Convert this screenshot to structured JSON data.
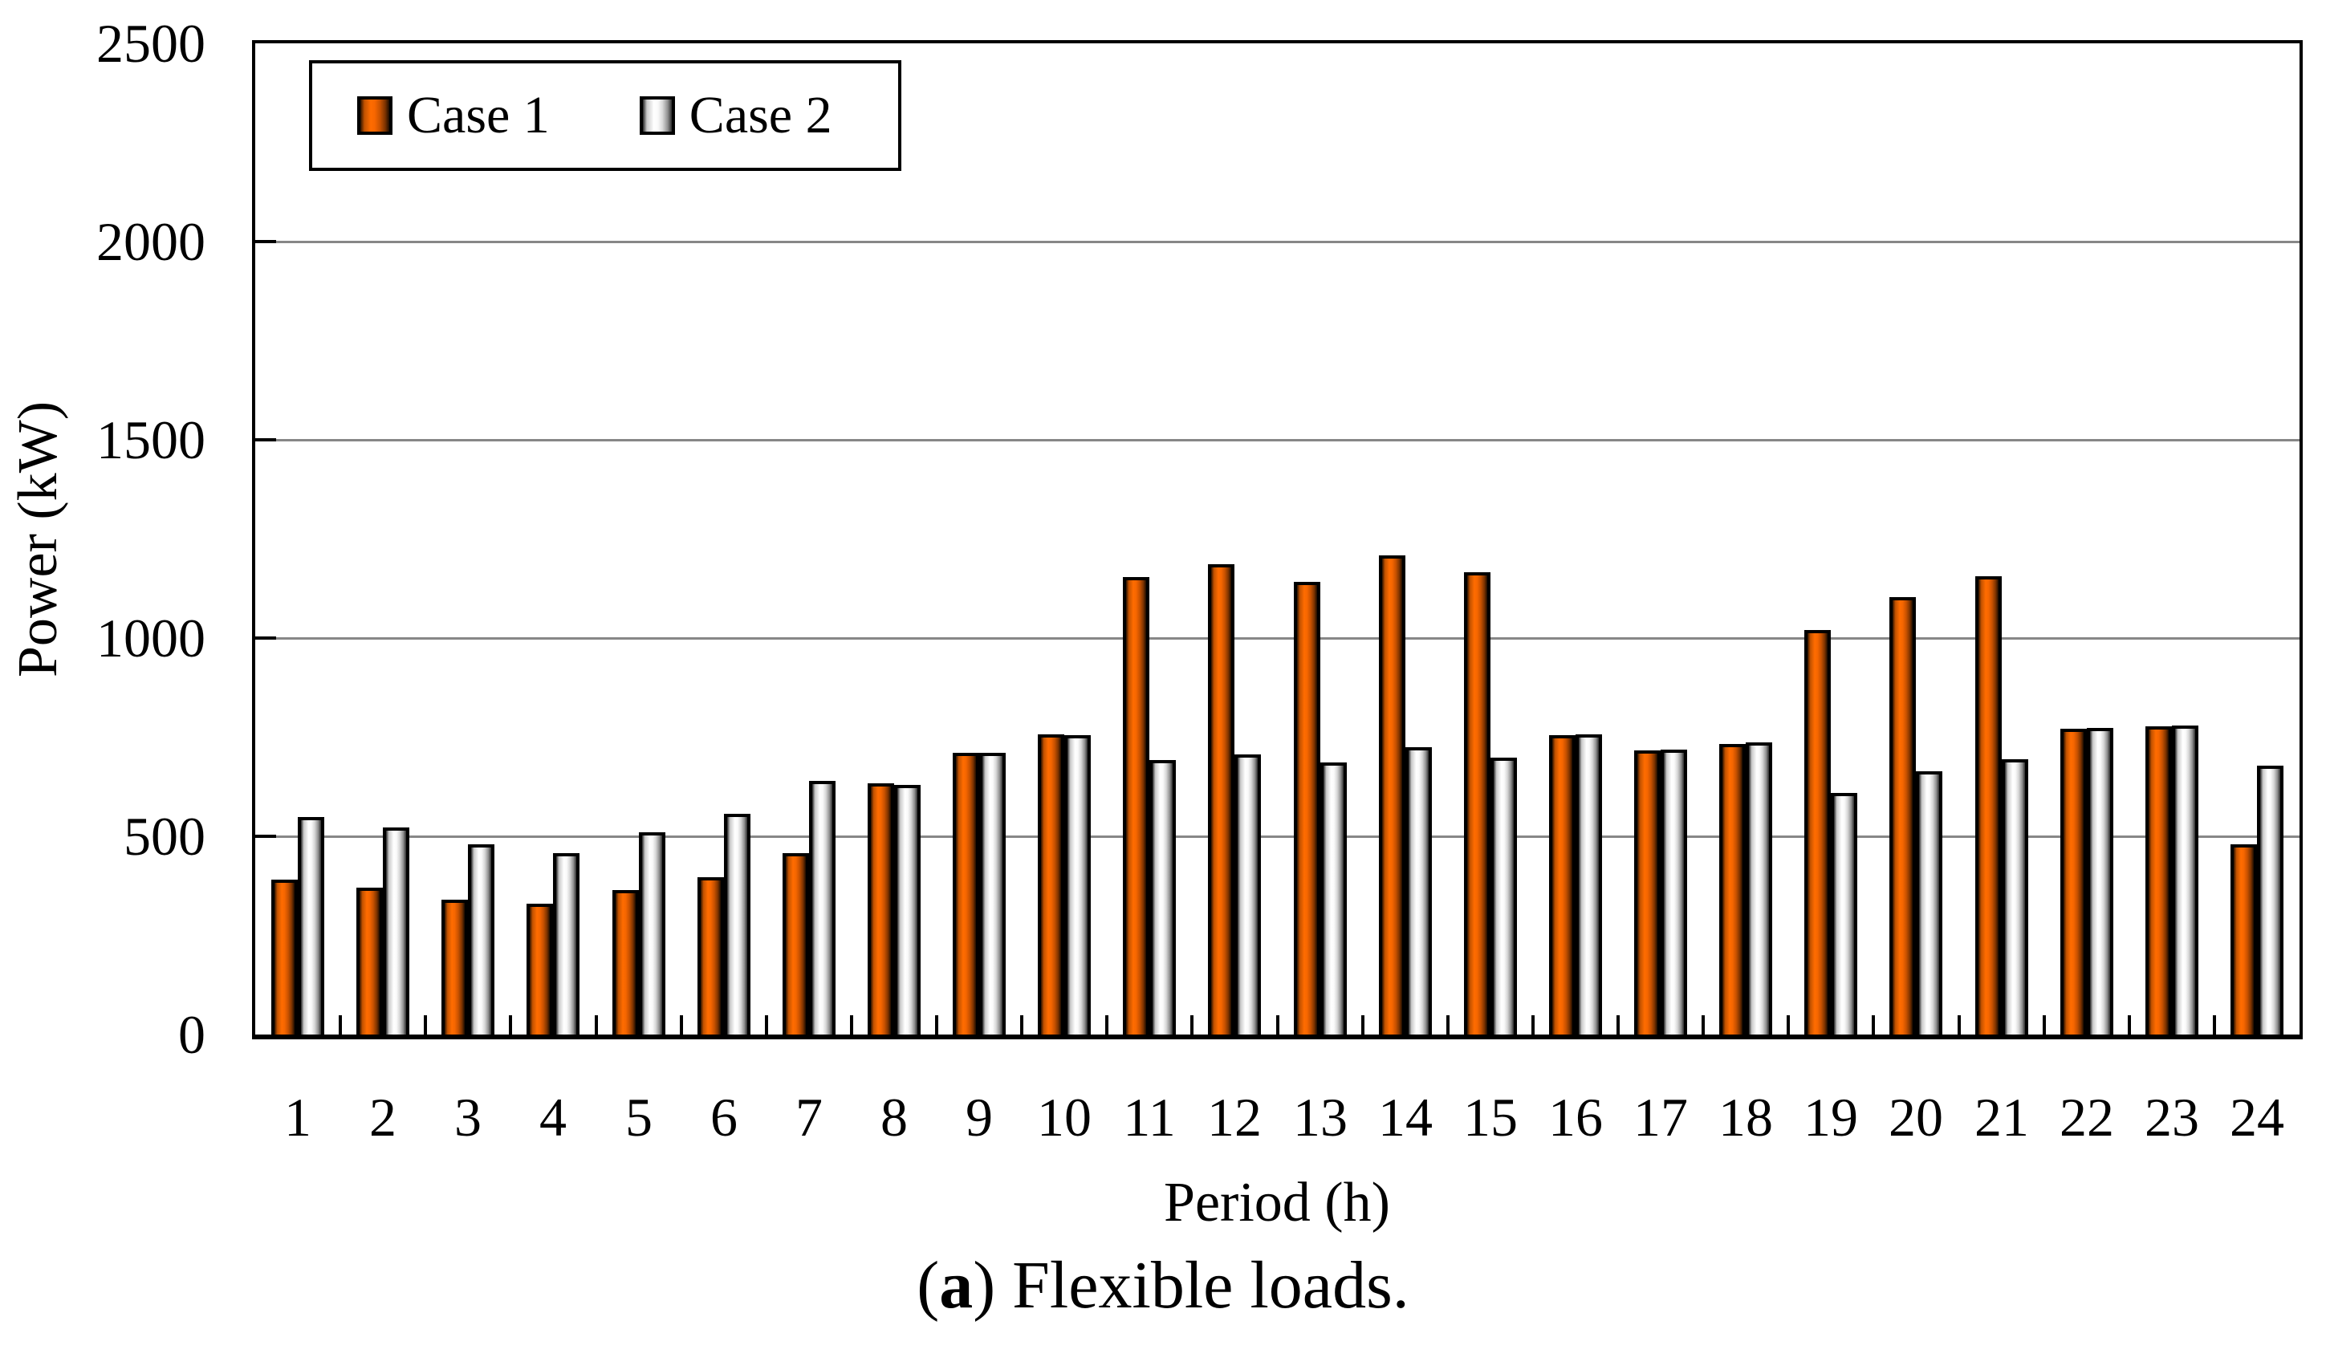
{
  "figure": {
    "caption": {
      "pre": "(",
      "bold": "a",
      "post": ") Flexible loads."
    }
  },
  "colors": {
    "background": "#ffffff",
    "axis": "#000000",
    "grid": "#878787",
    "case1_main": "#ff6b00",
    "case2_main": "#ffffff",
    "case1_gradient": [
      "#2a1200 0%",
      "#c25200 14%",
      "#ff6c00 36%",
      "#f66600 50%",
      "#c85200 68%",
      "#7c3300 86%",
      "#1c0c00 100%"
    ],
    "case2_gradient": [
      "#262626 0%",
      "#c9c9c9 14%",
      "#ffffff 38%",
      "#fafafa 52%",
      "#d8d8d8 68%",
      "#8f8f8f 86%",
      "#2e2e2e 100%"
    ]
  },
  "chart_data": {
    "type": "bar",
    "title": "",
    "xlabel": "Period (h)",
    "ylabel": "Power (kW)",
    "ylim": [
      0,
      2500
    ],
    "yticks": [
      0,
      500,
      1000,
      1500,
      2000,
      2500
    ],
    "grid": "horizontal gridlines at 500 kW intervals",
    "legend_position": "top-left inside plot, boxed",
    "categories": [
      "1",
      "2",
      "3",
      "4",
      "5",
      "6",
      "7",
      "8",
      "9",
      "10",
      "11",
      "12",
      "13",
      "14",
      "15",
      "16",
      "17",
      "18",
      "19",
      "20",
      "21",
      "22",
      "23",
      "24"
    ],
    "series": [
      {
        "name": "Case 1",
        "values": [
          390,
          371,
          340,
          330,
          364,
          396,
          458,
          633,
          710,
          757,
          1153,
          1187,
          1142,
          1208,
          1166,
          755,
          716,
          733,
          1020,
          1103,
          1156,
          771,
          778,
          479
        ]
      },
      {
        "name": "Case 2",
        "values": [
          548,
          522,
          479,
          458,
          511,
          556,
          640,
          629,
          711,
          756,
          692,
          706,
          686,
          724,
          698,
          757,
          719,
          736,
          610,
          663,
          695,
          773,
          780,
          679
        ]
      }
    ]
  }
}
